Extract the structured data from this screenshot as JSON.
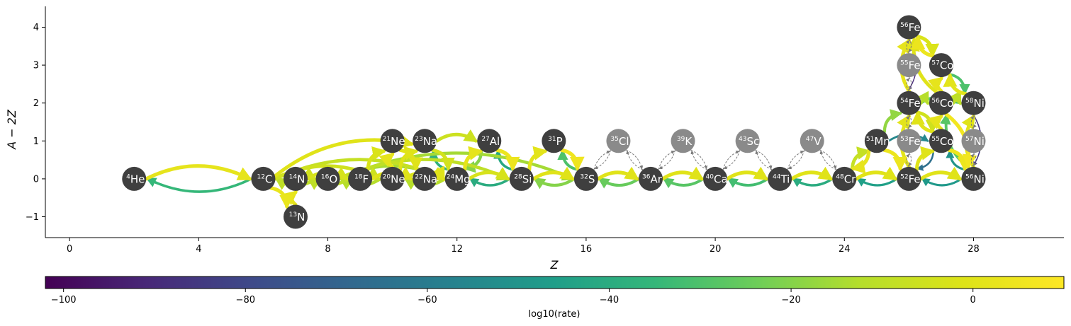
{
  "figure": {
    "xlabel": "Z",
    "ylabel": "A − 2Z",
    "xlim": [
      -0.75,
      30.8
    ],
    "ylim": [
      -1.55,
      4.55
    ],
    "xticks": [
      0,
      4,
      8,
      12,
      16,
      20,
      24,
      28
    ],
    "xtick_labels": [
      "0",
      "4",
      "8",
      "12",
      "16",
      "20",
      "24",
      "28"
    ],
    "yticks": [
      -1,
      0,
      1,
      2,
      3,
      4
    ],
    "ytick_labels": [
      "−1",
      "0",
      "1",
      "2",
      "3",
      "4"
    ]
  },
  "colorbar": {
    "label": "log10(rate)",
    "colormap": "viridis",
    "range": [
      -102,
      10
    ],
    "ticks": [
      -100,
      -80,
      -60,
      -40,
      -20,
      0
    ],
    "tick_labels": [
      "−100",
      "−80",
      "−60",
      "−40",
      "−20",
      "0"
    ]
  },
  "colors": {
    "active_node": "#3f3f3f",
    "passive_node": "#8a8a8a",
    "passive_link": "#7a7a7a"
  },
  "nuclei": [
    {
      "id": "he4",
      "mass": "4",
      "symbol": "He",
      "z": 2,
      "n_minus_z": 0,
      "active": true
    },
    {
      "id": "c12",
      "mass": "12",
      "symbol": "C",
      "z": 6,
      "n_minus_z": 0,
      "active": true
    },
    {
      "id": "n13",
      "mass": "13",
      "symbol": "N",
      "z": 7,
      "n_minus_z": -1,
      "active": true
    },
    {
      "id": "n14",
      "mass": "14",
      "symbol": "N",
      "z": 7,
      "n_minus_z": 0,
      "active": true
    },
    {
      "id": "o16",
      "mass": "16",
      "symbol": "O",
      "z": 8,
      "n_minus_z": 0,
      "active": true
    },
    {
      "id": "f18",
      "mass": "18",
      "symbol": "F",
      "z": 9,
      "n_minus_z": 0,
      "active": true
    },
    {
      "id": "ne20",
      "mass": "20",
      "symbol": "Ne",
      "z": 10,
      "n_minus_z": 0,
      "active": true
    },
    {
      "id": "ne21",
      "mass": "21",
      "symbol": "Ne",
      "z": 10,
      "n_minus_z": 1,
      "active": true
    },
    {
      "id": "na22",
      "mass": "22",
      "symbol": "Na",
      "z": 11,
      "n_minus_z": 0,
      "active": true
    },
    {
      "id": "na23",
      "mass": "23",
      "symbol": "Na",
      "z": 11,
      "n_minus_z": 1,
      "active": true
    },
    {
      "id": "mg24",
      "mass": "24",
      "symbol": "Mg",
      "z": 12,
      "n_minus_z": 0,
      "active": true
    },
    {
      "id": "al27",
      "mass": "27",
      "symbol": "Al",
      "z": 13,
      "n_minus_z": 1,
      "active": true
    },
    {
      "id": "si28",
      "mass": "28",
      "symbol": "Si",
      "z": 14,
      "n_minus_z": 0,
      "active": true
    },
    {
      "id": "p31",
      "mass": "31",
      "symbol": "P",
      "z": 15,
      "n_minus_z": 1,
      "active": true
    },
    {
      "id": "s32",
      "mass": "32",
      "symbol": "S",
      "z": 16,
      "n_minus_z": 0,
      "active": true
    },
    {
      "id": "cl35",
      "mass": "35",
      "symbol": "Cl",
      "z": 17,
      "n_minus_z": 1,
      "active": false
    },
    {
      "id": "ar36",
      "mass": "36",
      "symbol": "Ar",
      "z": 18,
      "n_minus_z": 0,
      "active": true
    },
    {
      "id": "k39",
      "mass": "39",
      "symbol": "K",
      "z": 19,
      "n_minus_z": 1,
      "active": false
    },
    {
      "id": "ca40",
      "mass": "40",
      "symbol": "Ca",
      "z": 20,
      "n_minus_z": 0,
      "active": true
    },
    {
      "id": "sc43",
      "mass": "43",
      "symbol": "Sc",
      "z": 21,
      "n_minus_z": 1,
      "active": false
    },
    {
      "id": "ti44",
      "mass": "44",
      "symbol": "Ti",
      "z": 22,
      "n_minus_z": 0,
      "active": true
    },
    {
      "id": "v47",
      "mass": "47",
      "symbol": "V",
      "z": 23,
      "n_minus_z": 1,
      "active": false
    },
    {
      "id": "cr48",
      "mass": "48",
      "symbol": "Cr",
      "z": 24,
      "n_minus_z": 0,
      "active": true
    },
    {
      "id": "mn51",
      "mass": "51",
      "symbol": "Mn",
      "z": 25,
      "n_minus_z": 1,
      "active": true
    },
    {
      "id": "fe52",
      "mass": "52",
      "symbol": "Fe",
      "z": 26,
      "n_minus_z": 0,
      "active": true
    },
    {
      "id": "fe53",
      "mass": "53",
      "symbol": "Fe",
      "z": 26,
      "n_minus_z": 1,
      "active": false
    },
    {
      "id": "fe54",
      "mass": "54",
      "symbol": "Fe",
      "z": 26,
      "n_minus_z": 2,
      "active": true
    },
    {
      "id": "fe55",
      "mass": "55",
      "symbol": "Fe",
      "z": 26,
      "n_minus_z": 3,
      "active": false
    },
    {
      "id": "fe56",
      "mass": "56",
      "symbol": "Fe",
      "z": 26,
      "n_minus_z": 4,
      "active": true
    },
    {
      "id": "co55",
      "mass": "55",
      "symbol": "Co",
      "z": 27,
      "n_minus_z": 1,
      "active": true
    },
    {
      "id": "co56",
      "mass": "56",
      "symbol": "Co",
      "z": 27,
      "n_minus_z": 2,
      "active": true
    },
    {
      "id": "co57",
      "mass": "57",
      "symbol": "Co",
      "z": 27,
      "n_minus_z": 3,
      "active": true
    },
    {
      "id": "ni56",
      "mass": "56",
      "symbol": "Ni",
      "z": 28,
      "n_minus_z": 0,
      "active": true
    },
    {
      "id": "ni57",
      "mass": "57",
      "symbol": "Ni",
      "z": 28,
      "n_minus_z": 1,
      "active": false
    },
    {
      "id": "ni58",
      "mass": "58",
      "symbol": "Ni",
      "z": 28,
      "n_minus_z": 2,
      "active": true
    }
  ],
  "links": [
    {
      "from": "he4",
      "to": "c12",
      "log_rate": 2
    },
    {
      "from": "c12",
      "to": "he4",
      "log_rate": -35
    },
    {
      "from": "c12",
      "to": "n13",
      "log_rate": 3
    },
    {
      "from": "n13",
      "to": "n14",
      "log_rate": 2
    },
    {
      "from": "c12",
      "to": "o16",
      "log_rate": -5
    },
    {
      "from": "o16",
      "to": "c12",
      "log_rate": -10
    },
    {
      "from": "n14",
      "to": "f18",
      "log_rate": -3
    },
    {
      "from": "f18",
      "to": "n14",
      "log_rate": -10
    },
    {
      "from": "o16",
      "to": "ne20",
      "log_rate": -8
    },
    {
      "from": "ne20",
      "to": "o16",
      "log_rate": -12
    },
    {
      "from": "c12",
      "to": "ne20",
      "log_rate": -5
    },
    {
      "from": "c12",
      "to": "na23",
      "log_rate": 0
    },
    {
      "from": "c12",
      "to": "mg24",
      "log_rate": -8
    },
    {
      "from": "o16",
      "to": "mg24",
      "log_rate": -15
    },
    {
      "from": "o16",
      "to": "si28",
      "log_rate": -10
    },
    {
      "from": "o16",
      "to": "s32",
      "log_rate": -15
    },
    {
      "from": "f18",
      "to": "na22",
      "log_rate": 0
    },
    {
      "from": "f18",
      "to": "ne21",
      "log_rate": -2
    },
    {
      "from": "ne20",
      "to": "na23",
      "log_rate": -1
    },
    {
      "from": "ne20",
      "to": "mg24",
      "log_rate": -2
    },
    {
      "from": "mg24",
      "to": "ne20",
      "log_rate": -12
    },
    {
      "from": "ne21",
      "to": "na22",
      "log_rate": 0
    },
    {
      "from": "na22",
      "to": "mg24",
      "log_rate": 0
    },
    {
      "from": "na23",
      "to": "mg24",
      "log_rate": -4
    },
    {
      "from": "mg24",
      "to": "na23",
      "log_rate": -38
    },
    {
      "from": "na23",
      "to": "al27",
      "log_rate": -6
    },
    {
      "from": "mg24",
      "to": "al27",
      "log_rate": 2
    },
    {
      "from": "al27",
      "to": "mg24",
      "log_rate": -20
    },
    {
      "from": "mg24",
      "to": "si28",
      "log_rate": -3
    },
    {
      "from": "si28",
      "to": "mg24",
      "log_rate": -40
    },
    {
      "from": "al27",
      "to": "si28",
      "log_rate": 4
    },
    {
      "from": "si28",
      "to": "al27",
      "log_rate": -42
    },
    {
      "from": "si28",
      "to": "p31",
      "log_rate": 1
    },
    {
      "from": "si28",
      "to": "s32",
      "log_rate": 0
    },
    {
      "from": "s32",
      "to": "si28",
      "log_rate": -20
    },
    {
      "from": "p31",
      "to": "s32",
      "log_rate": 5
    },
    {
      "from": "s32",
      "to": "p31",
      "log_rate": -30
    },
    {
      "from": "s32",
      "to": "ar36",
      "log_rate": 0
    },
    {
      "from": "ar36",
      "to": "s32",
      "log_rate": -25
    },
    {
      "from": "ar36",
      "to": "ca40",
      "log_rate": 0
    },
    {
      "from": "ca40",
      "to": "ar36",
      "log_rate": -28
    },
    {
      "from": "ca40",
      "to": "ti44",
      "log_rate": 0
    },
    {
      "from": "ti44",
      "to": "ca40",
      "log_rate": -32
    },
    {
      "from": "ti44",
      "to": "cr48",
      "log_rate": 0
    },
    {
      "from": "cr48",
      "to": "ti44",
      "log_rate": -40
    },
    {
      "from": "cr48",
      "to": "fe52",
      "log_rate": 0
    },
    {
      "from": "fe52",
      "to": "cr48",
      "log_rate": -45
    },
    {
      "from": "fe52",
      "to": "ni56",
      "log_rate": 0
    },
    {
      "from": "ni56",
      "to": "fe52",
      "log_rate": -48
    },
    {
      "from": "cr48",
      "to": "mn51",
      "log_rate": -8
    },
    {
      "from": "mn51",
      "to": "cr48",
      "log_rate": 2
    },
    {
      "from": "mn51",
      "to": "fe52",
      "log_rate": 4
    },
    {
      "from": "mn51",
      "to": "fe54",
      "log_rate": -18
    },
    {
      "from": "mn51",
      "to": "co55",
      "log_rate": -55
    },
    {
      "from": "fe52",
      "to": "co55",
      "log_rate": 0
    },
    {
      "from": "co55",
      "to": "fe52",
      "log_rate": -65
    },
    {
      "from": "co55",
      "to": "ni56",
      "log_rate": 4
    },
    {
      "from": "ni56",
      "to": "co55",
      "log_rate": -50
    },
    {
      "from": "fe54",
      "to": "co55",
      "log_rate": -5
    },
    {
      "from": "co55",
      "to": "fe54",
      "log_rate": 0
    },
    {
      "from": "fe54",
      "to": "ni58",
      "log_rate": -30
    },
    {
      "from": "fe54",
      "to": "fe56",
      "log_rate": 2
    },
    {
      "from": "fe56",
      "to": "fe54",
      "log_rate": -90
    },
    {
      "from": "co56",
      "to": "fe56",
      "log_rate": 0
    },
    {
      "from": "fe56",
      "to": "co57",
      "log_rate": -2
    },
    {
      "from": "co57",
      "to": "fe56",
      "log_rate": 4
    },
    {
      "from": "co56",
      "to": "co57",
      "log_rate": 2
    },
    {
      "from": "co57",
      "to": "ni58",
      "log_rate": -30
    },
    {
      "from": "ni58",
      "to": "co57",
      "log_rate": 1
    },
    {
      "from": "co56",
      "to": "ni58",
      "log_rate": -10
    },
    {
      "from": "ni56",
      "to": "ni58",
      "log_rate": 0
    },
    {
      "from": "ni58",
      "to": "ni56",
      "log_rate": -85
    },
    {
      "from": "ni56",
      "to": "co56",
      "log_rate": -28
    },
    {
      "from": "co56",
      "to": "ni56",
      "log_rate": 6
    },
    {
      "from": "co55",
      "to": "co56",
      "log_rate": 2
    },
    {
      "from": "fe54",
      "to": "co56",
      "log_rate": -12
    },
    {
      "from": "fe52",
      "to": "fe54",
      "log_rate": -100
    },
    {
      "from": "fe52",
      "to": "fe54",
      "log_rate": 1
    },
    {
      "from": "ne20",
      "to": "ne21",
      "log_rate": 2
    },
    {
      "from": "mg24",
      "to": "si28",
      "log_rate": -40
    }
  ],
  "passive_links": [
    {
      "from": "s32",
      "to": "cl35"
    },
    {
      "from": "cl35",
      "to": "s32"
    },
    {
      "from": "cl35",
      "to": "ar36"
    },
    {
      "from": "ar36",
      "to": "cl35"
    },
    {
      "from": "ar36",
      "to": "k39"
    },
    {
      "from": "k39",
      "to": "ar36"
    },
    {
      "from": "k39",
      "to": "ca40"
    },
    {
      "from": "ca40",
      "to": "k39"
    },
    {
      "from": "ca40",
      "to": "sc43"
    },
    {
      "from": "sc43",
      "to": "ca40"
    },
    {
      "from": "sc43",
      "to": "ti44"
    },
    {
      "from": "ti44",
      "to": "sc43"
    },
    {
      "from": "ti44",
      "to": "v47"
    },
    {
      "from": "v47",
      "to": "ti44"
    },
    {
      "from": "v47",
      "to": "cr48"
    },
    {
      "from": "cr48",
      "to": "v47"
    },
    {
      "from": "fe52",
      "to": "fe53"
    },
    {
      "from": "fe53",
      "to": "fe52"
    },
    {
      "from": "fe53",
      "to": "fe54"
    },
    {
      "from": "fe54",
      "to": "fe53"
    },
    {
      "from": "fe54",
      "to": "fe55"
    },
    {
      "from": "fe55",
      "to": "fe54"
    },
    {
      "from": "fe55",
      "to": "fe56"
    },
    {
      "from": "fe56",
      "to": "fe55"
    },
    {
      "from": "ni56",
      "to": "ni57"
    },
    {
      "from": "ni57",
      "to": "ni56"
    },
    {
      "from": "ni57",
      "to": "ni58"
    },
    {
      "from": "ni58",
      "to": "ni57"
    }
  ]
}
